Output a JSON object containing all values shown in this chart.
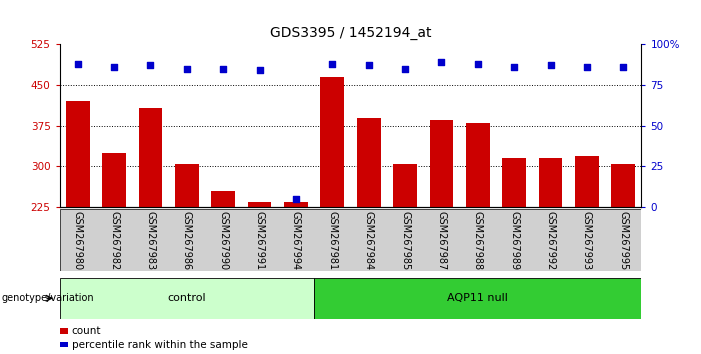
{
  "title": "GDS3395 / 1452194_at",
  "samples": [
    "GSM267980",
    "GSM267982",
    "GSM267983",
    "GSM267986",
    "GSM267990",
    "GSM267991",
    "GSM267994",
    "GSM267981",
    "GSM267984",
    "GSM267985",
    "GSM267987",
    "GSM267988",
    "GSM267989",
    "GSM267992",
    "GSM267993",
    "GSM267995"
  ],
  "counts": [
    420,
    325,
    408,
    305,
    255,
    235,
    235,
    465,
    390,
    305,
    385,
    380,
    315,
    315,
    320,
    305
  ],
  "percentile_ranks": [
    88,
    86,
    87,
    85,
    85,
    84,
    5,
    88,
    87,
    85,
    89,
    88,
    86,
    87,
    86,
    86
  ],
  "groups": {
    "control": [
      0,
      1,
      2,
      3,
      4,
      5,
      6
    ],
    "aqp11_null": [
      7,
      8,
      9,
      10,
      11,
      12,
      13,
      14,
      15
    ]
  },
  "group_labels": [
    "control",
    "AQP11 null"
  ],
  "ylim_left": [
    225,
    525
  ],
  "ylim_right": [
    0,
    100
  ],
  "yticks_left": [
    225,
    300,
    375,
    450,
    525
  ],
  "yticks_right": [
    0,
    25,
    50,
    75,
    100
  ],
  "bar_color": "#cc0000",
  "dot_color": "#0000cc",
  "bar_bottom": 225,
  "control_bg": "#ccffcc",
  "aqp11_bg": "#33cc33",
  "xlabel_area_bg": "#d0d0d0",
  "genotype_label": "genotype/variation",
  "legend_count_label": "count",
  "legend_pct_label": "percentile rank within the sample",
  "title_fontsize": 10,
  "tick_fontsize": 7.5,
  "label_fontsize": 7,
  "geno_fontsize": 8
}
